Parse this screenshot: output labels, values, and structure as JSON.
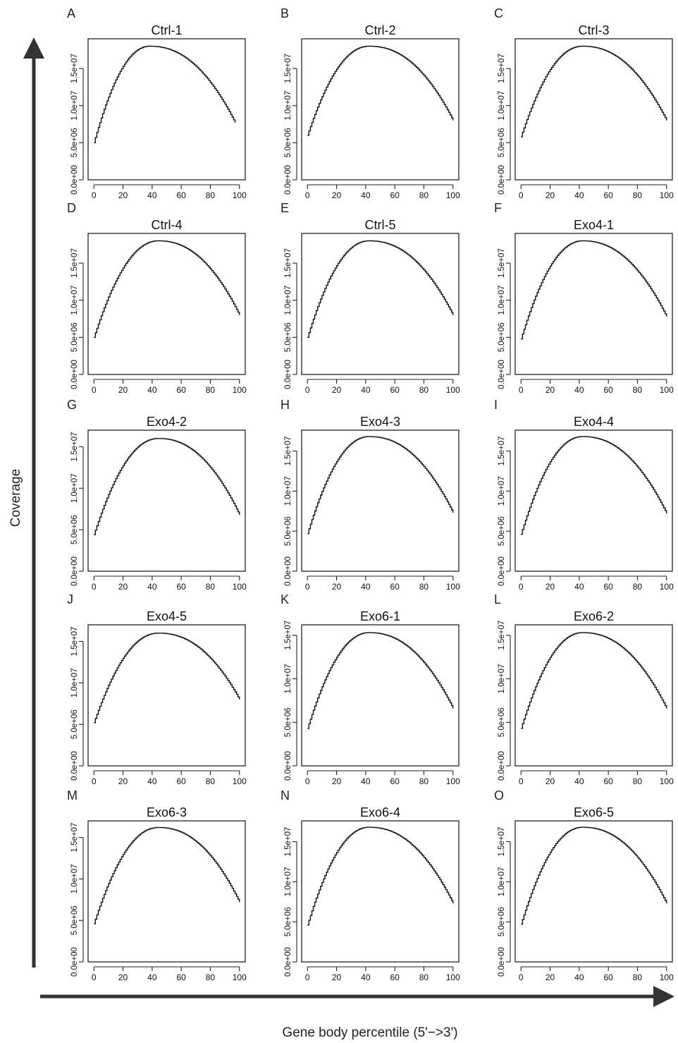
{
  "figure": {
    "ylabel": "Coverage",
    "xlabel": "Gene body percentile (5'−>3')"
  },
  "chart_data": [
    {
      "type": "line",
      "letter": "A",
      "title": "Ctrl-1",
      "x_ticks": [
        0,
        20,
        40,
        60,
        80,
        100
      ],
      "y_ticks": [
        "0.0e+00",
        "5.0e+06",
        "1.0e+07",
        "1.5e+07"
      ],
      "ylim": [
        0,
        19000000
      ],
      "xlim": [
        -4,
        104
      ],
      "x_end": 97,
      "start": 5000000,
      "peak": 18000000,
      "peak_x": 38,
      "end": 7700000
    },
    {
      "type": "line",
      "letter": "B",
      "title": "Ctrl-2",
      "x_ticks": [
        0,
        20,
        40,
        60,
        80,
        100
      ],
      "y_ticks": [
        "0.0e+00",
        "5.0e+06",
        "1.0e+07",
        "1.5e+07"
      ],
      "ylim": [
        0,
        19000000
      ],
      "xlim": [
        -4,
        104
      ],
      "x_end": 100,
      "start": 6000000,
      "peak": 18000000,
      "peak_x": 42,
      "end": 8000000
    },
    {
      "type": "line",
      "letter": "C",
      "title": "Ctrl-3",
      "x_ticks": [
        0,
        20,
        40,
        60,
        80,
        100
      ],
      "y_ticks": [
        "0.0e+00",
        "5.0e+06",
        "1.0e+07",
        "1.5e+07"
      ],
      "ylim": [
        0,
        19000000
      ],
      "xlim": [
        -4,
        104
      ],
      "x_end": 100,
      "start": 5800000,
      "peak": 18000000,
      "peak_x": 42,
      "end": 8000000
    },
    {
      "type": "line",
      "letter": "D",
      "title": "Ctrl-4",
      "x_ticks": [
        0,
        20,
        40,
        60,
        80,
        100
      ],
      "y_ticks": [
        "0.0e+00",
        "5.0e+06",
        "1.0e+07",
        "1.5e+07"
      ],
      "ylim": [
        0,
        19000000
      ],
      "xlim": [
        -4,
        104
      ],
      "x_end": 100,
      "start": 5000000,
      "peak": 18000000,
      "peak_x": 44,
      "end": 8000000
    },
    {
      "type": "line",
      "letter": "E",
      "title": "Ctrl-5",
      "x_ticks": [
        0,
        20,
        40,
        60,
        80,
        100
      ],
      "y_ticks": [
        "0.0e+00",
        "5.0e+06",
        "1.0e+07",
        "1.5e+07"
      ],
      "ylim": [
        0,
        19000000
      ],
      "xlim": [
        -4,
        104
      ],
      "x_end": 100,
      "start": 5000000,
      "peak": 18000000,
      "peak_x": 42,
      "end": 8000000
    },
    {
      "type": "line",
      "letter": "F",
      "title": "Exo4-1",
      "x_ticks": [
        0,
        20,
        40,
        60,
        80,
        100
      ],
      "y_ticks": [
        "0.0e+00",
        "5.0e+06",
        "1.0e+07",
        "1.5e+07"
      ],
      "ylim": [
        0,
        19000000
      ],
      "xlim": [
        -4,
        104
      ],
      "x_end": 100,
      "start": 4800000,
      "peak": 18000000,
      "peak_x": 42,
      "end": 7800000
    },
    {
      "type": "line",
      "letter": "G",
      "title": "Exo4-2",
      "x_ticks": [
        0,
        20,
        40,
        60,
        80,
        100
      ],
      "y_ticks": [
        "0.0e+00",
        "5.0e+06",
        "1.0e+07",
        "1.5e+07"
      ],
      "ylim": [
        0,
        17000000
      ],
      "xlim": [
        -4,
        104
      ],
      "x_end": 100,
      "start": 4400000,
      "peak": 16000000,
      "peak_x": 44,
      "end": 6800000
    },
    {
      "type": "line",
      "letter": "H",
      "title": "Exo4-3",
      "x_ticks": [
        0,
        20,
        40,
        60,
        80,
        100
      ],
      "y_ticks": [
        "0.0e+00",
        "5.0e+06",
        "1.0e+07",
        "1.5e+07"
      ],
      "ylim": [
        0,
        17600000
      ],
      "xlim": [
        -4,
        104
      ],
      "x_end": 100,
      "start": 4700000,
      "peak": 16800000,
      "peak_x": 42,
      "end": 7300000
    },
    {
      "type": "line",
      "letter": "I",
      "title": "Exo4-4",
      "x_ticks": [
        0,
        20,
        40,
        60,
        80,
        100
      ],
      "y_ticks": [
        "0.0e+00",
        "5.0e+06",
        "1.0e+07",
        "1.5e+07"
      ],
      "ylim": [
        0,
        17600000
      ],
      "xlim": [
        -4,
        104
      ],
      "x_end": 100,
      "start": 4600000,
      "peak": 16800000,
      "peak_x": 42,
      "end": 7200000
    },
    {
      "type": "line",
      "letter": "J",
      "title": "Exo4-5",
      "x_ticks": [
        0,
        20,
        40,
        60,
        80,
        100
      ],
      "y_ticks": [
        "0.0e+00",
        "5.0e+06",
        "1.0e+07",
        "1.5e+07"
      ],
      "ylim": [
        0,
        17000000
      ],
      "xlim": [
        -4,
        104
      ],
      "x_end": 100,
      "start": 5200000,
      "peak": 16000000,
      "peak_x": 44,
      "end": 8000000
    },
    {
      "type": "line",
      "letter": "K",
      "title": "Exo6-1",
      "x_ticks": [
        0,
        20,
        40,
        60,
        80,
        100
      ],
      "y_ticks": [
        "0.0e+00",
        "5.0e+06",
        "1.0e+07",
        "1.5e+07"
      ],
      "ylim": [
        0,
        16200000
      ],
      "xlim": [
        -4,
        104
      ],
      "x_end": 100,
      "start": 4300000,
      "peak": 15300000,
      "peak_x": 42,
      "end": 6600000
    },
    {
      "type": "line",
      "letter": "L",
      "title": "Exo6-2",
      "x_ticks": [
        0,
        20,
        40,
        60,
        80,
        100
      ],
      "y_ticks": [
        "0.0e+00",
        "5.0e+06",
        "1.0e+07",
        "1.5e+07"
      ],
      "ylim": [
        0,
        16200000
      ],
      "xlim": [
        -4,
        104
      ],
      "x_end": 100,
      "start": 4300000,
      "peak": 15300000,
      "peak_x": 42,
      "end": 6600000
    },
    {
      "type": "line",
      "letter": "M",
      "title": "Exo6-3",
      "x_ticks": [
        0,
        20,
        40,
        60,
        80,
        100
      ],
      "y_ticks": [
        "0.0e+00",
        "5.0e+06",
        "1.0e+07",
        "1.5e+07"
      ],
      "ylim": [
        0,
        17000000
      ],
      "xlim": [
        -4,
        104
      ],
      "x_end": 100,
      "start": 4600000,
      "peak": 16200000,
      "peak_x": 44,
      "end": 7200000
    },
    {
      "type": "line",
      "letter": "N",
      "title": "Exo6-4",
      "x_ticks": [
        0,
        20,
        40,
        60,
        80,
        100
      ],
      "y_ticks": [
        "0.0e+00",
        "5.0e+06",
        "1.0e+07",
        "1.5e+07"
      ],
      "ylim": [
        0,
        17600000
      ],
      "xlim": [
        -4,
        104
      ],
      "x_end": 100,
      "start": 4600000,
      "peak": 16800000,
      "peak_x": 42,
      "end": 7300000
    },
    {
      "type": "line",
      "letter": "O",
      "title": "Exo6-5",
      "x_ticks": [
        0,
        20,
        40,
        60,
        80,
        100
      ],
      "y_ticks": [
        "0.0e+00",
        "5.0e+06",
        "1.0e+07",
        "1.5e+07"
      ],
      "ylim": [
        0,
        17600000
      ],
      "xlim": [
        -4,
        104
      ],
      "x_end": 100,
      "start": 4700000,
      "peak": 16800000,
      "peak_x": 42,
      "end": 7300000
    }
  ]
}
